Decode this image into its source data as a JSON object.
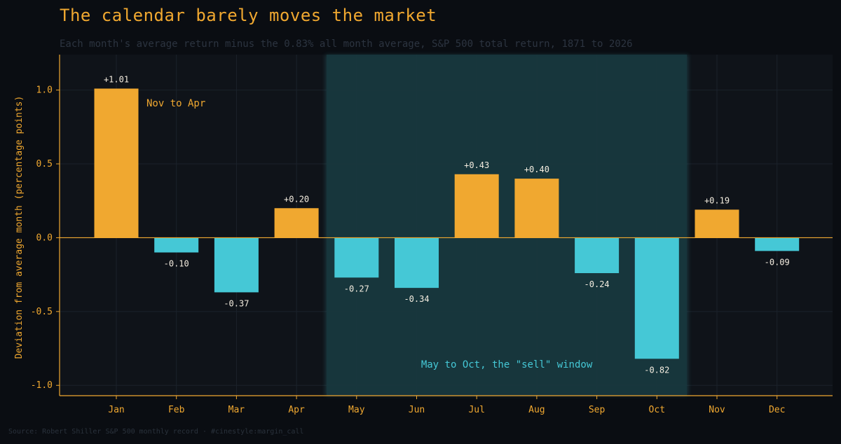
{
  "header": {
    "title": "The calendar barely moves the market",
    "subtitle": "Each month's average return minus the 0.83% all month average, S&P 500 total return, 1871 to 2026"
  },
  "footer": {
    "source": "Source: Robert Shiller S&P 500 monthly record  ·  #cinestyle:margin_call"
  },
  "colors": {
    "positive": "#f0a830",
    "negative": "#45c8d6",
    "highlight": "#18363d",
    "background": "#0a0d12",
    "plot_background": "#0f1319"
  },
  "chart_data": {
    "type": "bar",
    "categories": [
      "Jan",
      "Feb",
      "Mar",
      "Apr",
      "May",
      "Jun",
      "Jul",
      "Aug",
      "Sep",
      "Oct",
      "Nov",
      "Dec"
    ],
    "values": [
      1.01,
      -0.1,
      -0.37,
      0.2,
      -0.27,
      -0.34,
      0.43,
      0.4,
      -0.24,
      -0.82,
      0.19,
      -0.09
    ],
    "value_labels": [
      "+1.01",
      "-0.10",
      "-0.37",
      "+0.20",
      "-0.27",
      "-0.34",
      "+0.43",
      "+0.40",
      "-0.24",
      "-0.82",
      "+0.19",
      "-0.09"
    ],
    "xlabel": "",
    "ylabel": "Deviation from average month (percentage points)",
    "ylim": [
      -1.07,
      1.24
    ],
    "yticks": [
      1.0,
      0.5,
      0.0,
      -0.5,
      -1.0
    ],
    "ytick_labels": [
      "1.0",
      "0.5",
      "0.0",
      "-0.5",
      "-1.0"
    ],
    "grid": true,
    "annotations": [
      {
        "text": "Nov to Apr",
        "anchor_category": "Jan"
      },
      {
        "text": "May to Oct, the \"sell\" window",
        "span": [
          "May",
          "Oct"
        ]
      }
    ],
    "shaded_span": {
      "from": "May",
      "to": "Oct"
    }
  }
}
